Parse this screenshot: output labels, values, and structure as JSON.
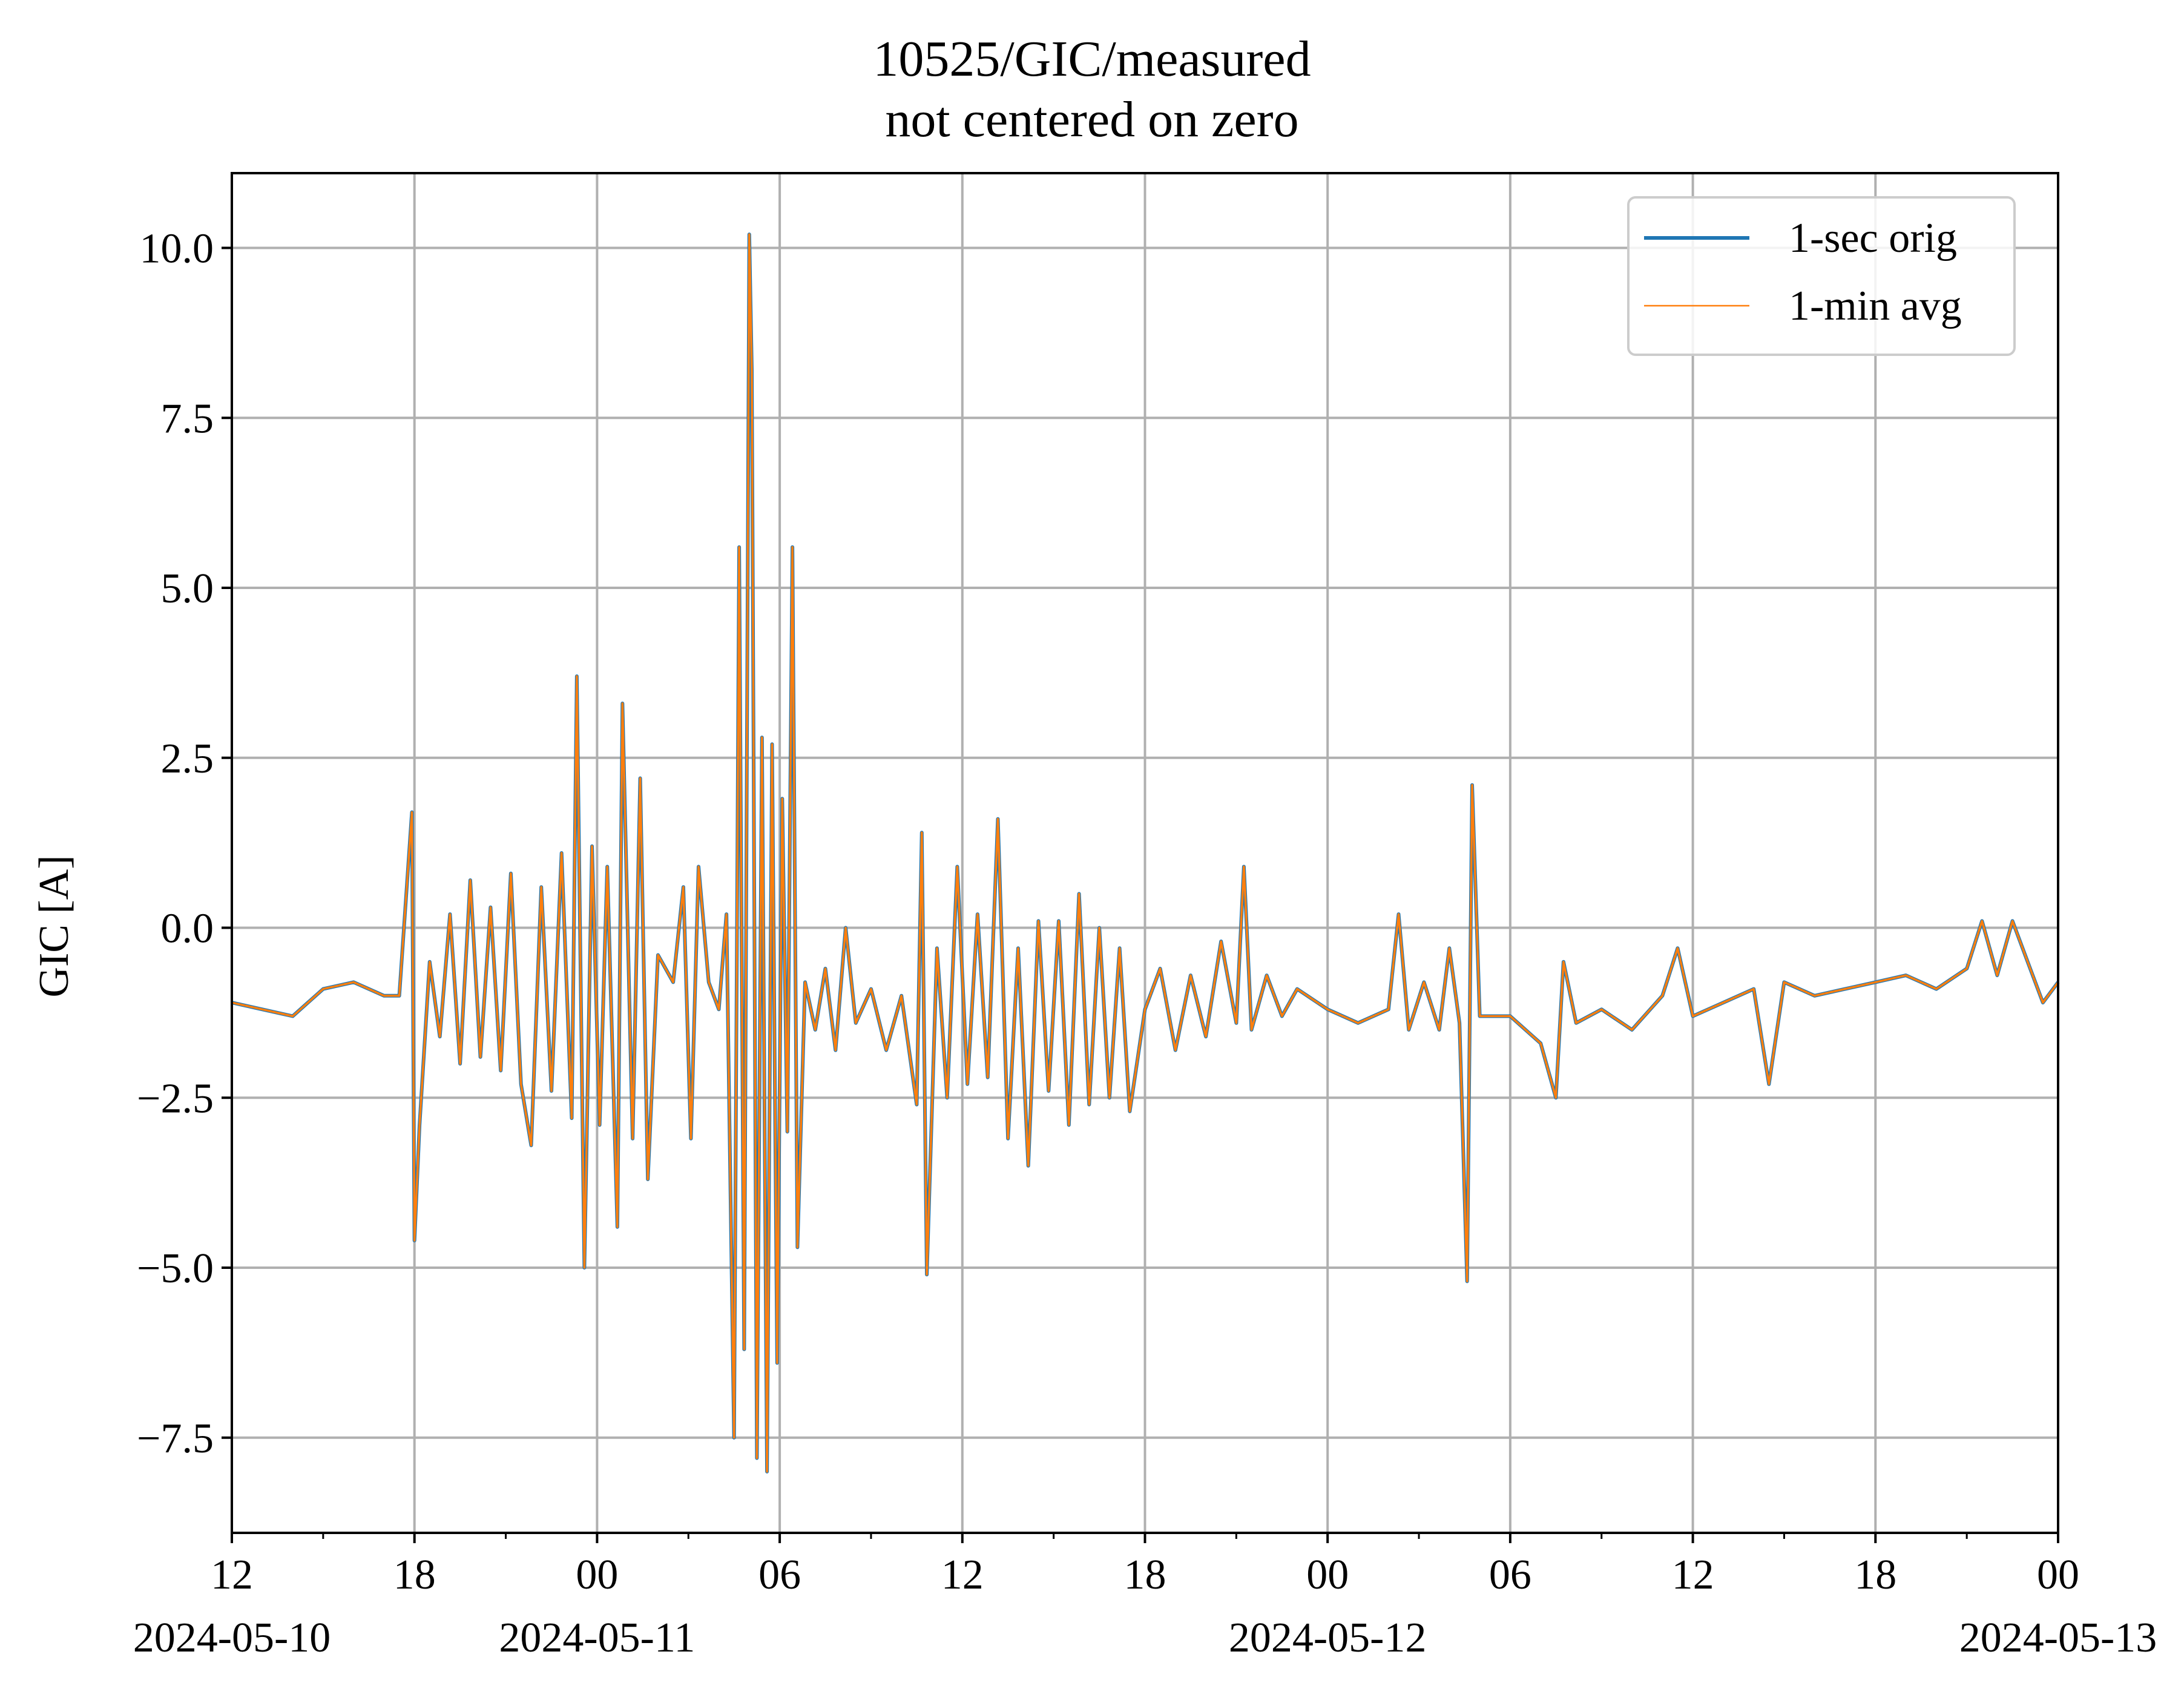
{
  "chart_data": {
    "type": "line",
    "title": "10525/GIC/measured",
    "subtitle": "not centered on zero",
    "xlabel": "",
    "ylabel": "GIC [A]",
    "xlim": [
      "2024-05-10 12:00",
      "2024-05-13 00:00"
    ],
    "ylim": [
      -8.9,
      11.1
    ],
    "grid": true,
    "legend_position": "top-right",
    "y_ticks": [
      "−7.5",
      "−5.0",
      "−2.5",
      "0.0",
      "2.5",
      "5.0",
      "7.5",
      "10.0"
    ],
    "y_tick_values": [
      -7.5,
      -5.0,
      -2.5,
      0.0,
      2.5,
      5.0,
      7.5,
      10.0
    ],
    "x_ticks": [
      {
        "time": "2024-05-10 12:00",
        "label": "12",
        "date_label": "2024-05-10"
      },
      {
        "time": "2024-05-10 18:00",
        "label": "18",
        "date_label": ""
      },
      {
        "time": "2024-05-11 00:00",
        "label": "00",
        "date_label": "2024-05-11"
      },
      {
        "time": "2024-05-11 06:00",
        "label": "06",
        "date_label": ""
      },
      {
        "time": "2024-05-11 12:00",
        "label": "12",
        "date_label": ""
      },
      {
        "time": "2024-05-11 18:00",
        "label": "18",
        "date_label": ""
      },
      {
        "time": "2024-05-12 00:00",
        "label": "00",
        "date_label": "2024-05-12"
      },
      {
        "time": "2024-05-12 06:00",
        "label": "06",
        "date_label": ""
      },
      {
        "time": "2024-05-12 12:00",
        "label": "12",
        "date_label": ""
      },
      {
        "time": "2024-05-12 18:00",
        "label": "18",
        "date_label": ""
      },
      {
        "time": "2024-05-13 00:00",
        "label": "00",
        "date_label": "2024-05-13"
      }
    ],
    "series": [
      {
        "name": "1-sec orig",
        "color": "#1f77b4"
      },
      {
        "name": "1-min avg",
        "color": "#ff7f0e"
      }
    ],
    "points": [
      [
        "2024-05-10 12:00",
        -1.1
      ],
      [
        "2024-05-10 13:00",
        -1.2
      ],
      [
        "2024-05-10 14:00",
        -1.3
      ],
      [
        "2024-05-10 15:00",
        -0.9
      ],
      [
        "2024-05-10 16:00",
        -0.8
      ],
      [
        "2024-05-10 17:00",
        -1.0
      ],
      [
        "2024-05-10 17:30",
        -1.0
      ],
      [
        "2024-05-10 17:55",
        1.7
      ],
      [
        "2024-05-10 18:00",
        -4.6
      ],
      [
        "2024-05-10 18:10",
        -2.9
      ],
      [
        "2024-05-10 18:30",
        -0.5
      ],
      [
        "2024-05-10 18:50",
        -1.6
      ],
      [
        "2024-05-10 19:10",
        0.2
      ],
      [
        "2024-05-10 19:30",
        -2.0
      ],
      [
        "2024-05-10 19:50",
        0.7
      ],
      [
        "2024-05-10 20:10",
        -1.9
      ],
      [
        "2024-05-10 20:30",
        0.3
      ],
      [
        "2024-05-10 20:50",
        -2.1
      ],
      [
        "2024-05-10 21:10",
        0.8
      ],
      [
        "2024-05-10 21:30",
        -2.3
      ],
      [
        "2024-05-10 21:50",
        -3.2
      ],
      [
        "2024-05-10 22:10",
        0.6
      ],
      [
        "2024-05-10 22:30",
        -2.4
      ],
      [
        "2024-05-10 22:50",
        1.1
      ],
      [
        "2024-05-10 23:10",
        -2.8
      ],
      [
        "2024-05-10 23:20",
        3.7
      ],
      [
        "2024-05-10 23:35",
        -5.0
      ],
      [
        "2024-05-10 23:50",
        1.2
      ],
      [
        "2024-05-11 00:05",
        -2.9
      ],
      [
        "2024-05-11 00:20",
        0.9
      ],
      [
        "2024-05-11 00:40",
        -4.4
      ],
      [
        "2024-05-11 00:50",
        3.3
      ],
      [
        "2024-05-11 01:10",
        -3.1
      ],
      [
        "2024-05-11 01:25",
        2.2
      ],
      [
        "2024-05-11 01:40",
        -3.7
      ],
      [
        "2024-05-11 02:00",
        -0.4
      ],
      [
        "2024-05-11 02:30",
        -0.8
      ],
      [
        "2024-05-11 02:50",
        0.6
      ],
      [
        "2024-05-11 03:05",
        -3.1
      ],
      [
        "2024-05-11 03:20",
        0.9
      ],
      [
        "2024-05-11 03:40",
        -0.8
      ],
      [
        "2024-05-11 04:00",
        -1.2
      ],
      [
        "2024-05-11 04:15",
        0.2
      ],
      [
        "2024-05-11 04:30",
        -7.5
      ],
      [
        "2024-05-11 04:40",
        5.6
      ],
      [
        "2024-05-11 04:50",
        -6.2
      ],
      [
        "2024-05-11 05:00",
        10.2
      ],
      [
        "2024-05-11 05:05",
        8.2
      ],
      [
        "2024-05-11 05:15",
        -7.8
      ],
      [
        "2024-05-11 05:25",
        2.8
      ],
      [
        "2024-05-11 05:35",
        -8.0
      ],
      [
        "2024-05-11 05:45",
        2.7
      ],
      [
        "2024-05-11 05:55",
        -6.4
      ],
      [
        "2024-05-11 06:05",
        1.9
      ],
      [
        "2024-05-11 06:15",
        -3.0
      ],
      [
        "2024-05-11 06:25",
        5.6
      ],
      [
        "2024-05-11 06:35",
        -4.7
      ],
      [
        "2024-05-11 06:50",
        -0.8
      ],
      [
        "2024-05-11 07:10",
        -1.5
      ],
      [
        "2024-05-11 07:30",
        -0.6
      ],
      [
        "2024-05-11 07:50",
        -1.8
      ],
      [
        "2024-05-11 08:10",
        0.0
      ],
      [
        "2024-05-11 08:30",
        -1.4
      ],
      [
        "2024-05-11 09:00",
        -0.9
      ],
      [
        "2024-05-11 09:30",
        -1.8
      ],
      [
        "2024-05-11 10:00",
        -1.0
      ],
      [
        "2024-05-11 10:30",
        -2.6
      ],
      [
        "2024-05-11 10:40",
        1.4
      ],
      [
        "2024-05-11 10:50",
        -5.1
      ],
      [
        "2024-05-11 11:10",
        -0.3
      ],
      [
        "2024-05-11 11:30",
        -2.5
      ],
      [
        "2024-05-11 11:50",
        0.9
      ],
      [
        "2024-05-11 12:10",
        -2.3
      ],
      [
        "2024-05-11 12:30",
        0.2
      ],
      [
        "2024-05-11 12:50",
        -2.2
      ],
      [
        "2024-05-11 13:10",
        1.6
      ],
      [
        "2024-05-11 13:30",
        -3.1
      ],
      [
        "2024-05-11 13:50",
        -0.3
      ],
      [
        "2024-05-11 14:10",
        -3.5
      ],
      [
        "2024-05-11 14:30",
        0.1
      ],
      [
        "2024-05-11 14:50",
        -2.4
      ],
      [
        "2024-05-11 15:10",
        0.1
      ],
      [
        "2024-05-11 15:30",
        -2.9
      ],
      [
        "2024-05-11 15:50",
        0.5
      ],
      [
        "2024-05-11 16:10",
        -2.6
      ],
      [
        "2024-05-11 16:30",
        0.0
      ],
      [
        "2024-05-11 16:50",
        -2.5
      ],
      [
        "2024-05-11 17:10",
        -0.3
      ],
      [
        "2024-05-11 17:30",
        -2.7
      ],
      [
        "2024-05-11 18:00",
        -1.2
      ],
      [
        "2024-05-11 18:30",
        -0.6
      ],
      [
        "2024-05-11 19:00",
        -1.8
      ],
      [
        "2024-05-11 19:30",
        -0.7
      ],
      [
        "2024-05-11 20:00",
        -1.6
      ],
      [
        "2024-05-11 20:30",
        -0.2
      ],
      [
        "2024-05-11 21:00",
        -1.4
      ],
      [
        "2024-05-11 21:15",
        0.9
      ],
      [
        "2024-05-11 21:30",
        -1.5
      ],
      [
        "2024-05-11 22:00",
        -0.7
      ],
      [
        "2024-05-11 22:30",
        -1.3
      ],
      [
        "2024-05-11 23:00",
        -0.9
      ],
      [
        "2024-05-12 00:00",
        -1.2
      ],
      [
        "2024-05-12 01:00",
        -1.4
      ],
      [
        "2024-05-12 02:00",
        -1.2
      ],
      [
        "2024-05-12 02:20",
        0.2
      ],
      [
        "2024-05-12 02:40",
        -1.5
      ],
      [
        "2024-05-12 03:10",
        -0.8
      ],
      [
        "2024-05-12 03:40",
        -1.5
      ],
      [
        "2024-05-12 04:00",
        -0.3
      ],
      [
        "2024-05-12 04:20",
        -1.4
      ],
      [
        "2024-05-12 04:35",
        -5.2
      ],
      [
        "2024-05-12 04:45",
        2.1
      ],
      [
        "2024-05-12 05:00",
        -1.3
      ],
      [
        "2024-05-12 06:00",
        -1.3
      ],
      [
        "2024-05-12 07:00",
        -1.7
      ],
      [
        "2024-05-12 07:30",
        -2.5
      ],
      [
        "2024-05-12 07:45",
        -0.5
      ],
      [
        "2024-05-12 08:10",
        -1.4
      ],
      [
        "2024-05-12 09:00",
        -1.2
      ],
      [
        "2024-05-12 10:00",
        -1.5
      ],
      [
        "2024-05-12 11:00",
        -1.0
      ],
      [
        "2024-05-12 11:30",
        -0.3
      ],
      [
        "2024-05-12 12:00",
        -1.3
      ],
      [
        "2024-05-12 13:00",
        -1.1
      ],
      [
        "2024-05-12 14:00",
        -0.9
      ],
      [
        "2024-05-12 14:30",
        -2.3
      ],
      [
        "2024-05-12 15:00",
        -0.8
      ],
      [
        "2024-05-12 16:00",
        -1.0
      ],
      [
        "2024-05-12 17:00",
        -0.9
      ],
      [
        "2024-05-12 18:00",
        -0.8
      ],
      [
        "2024-05-12 19:00",
        -0.7
      ],
      [
        "2024-05-12 20:00",
        -0.9
      ],
      [
        "2024-05-12 21:00",
        -0.6
      ],
      [
        "2024-05-12 21:30",
        0.1
      ],
      [
        "2024-05-12 22:00",
        -0.7
      ],
      [
        "2024-05-12 22:30",
        0.1
      ],
      [
        "2024-05-12 23:00",
        -0.5
      ],
      [
        "2024-05-12 23:30",
        -1.1
      ],
      [
        "2024-05-13 00:00",
        -0.8
      ]
    ]
  }
}
